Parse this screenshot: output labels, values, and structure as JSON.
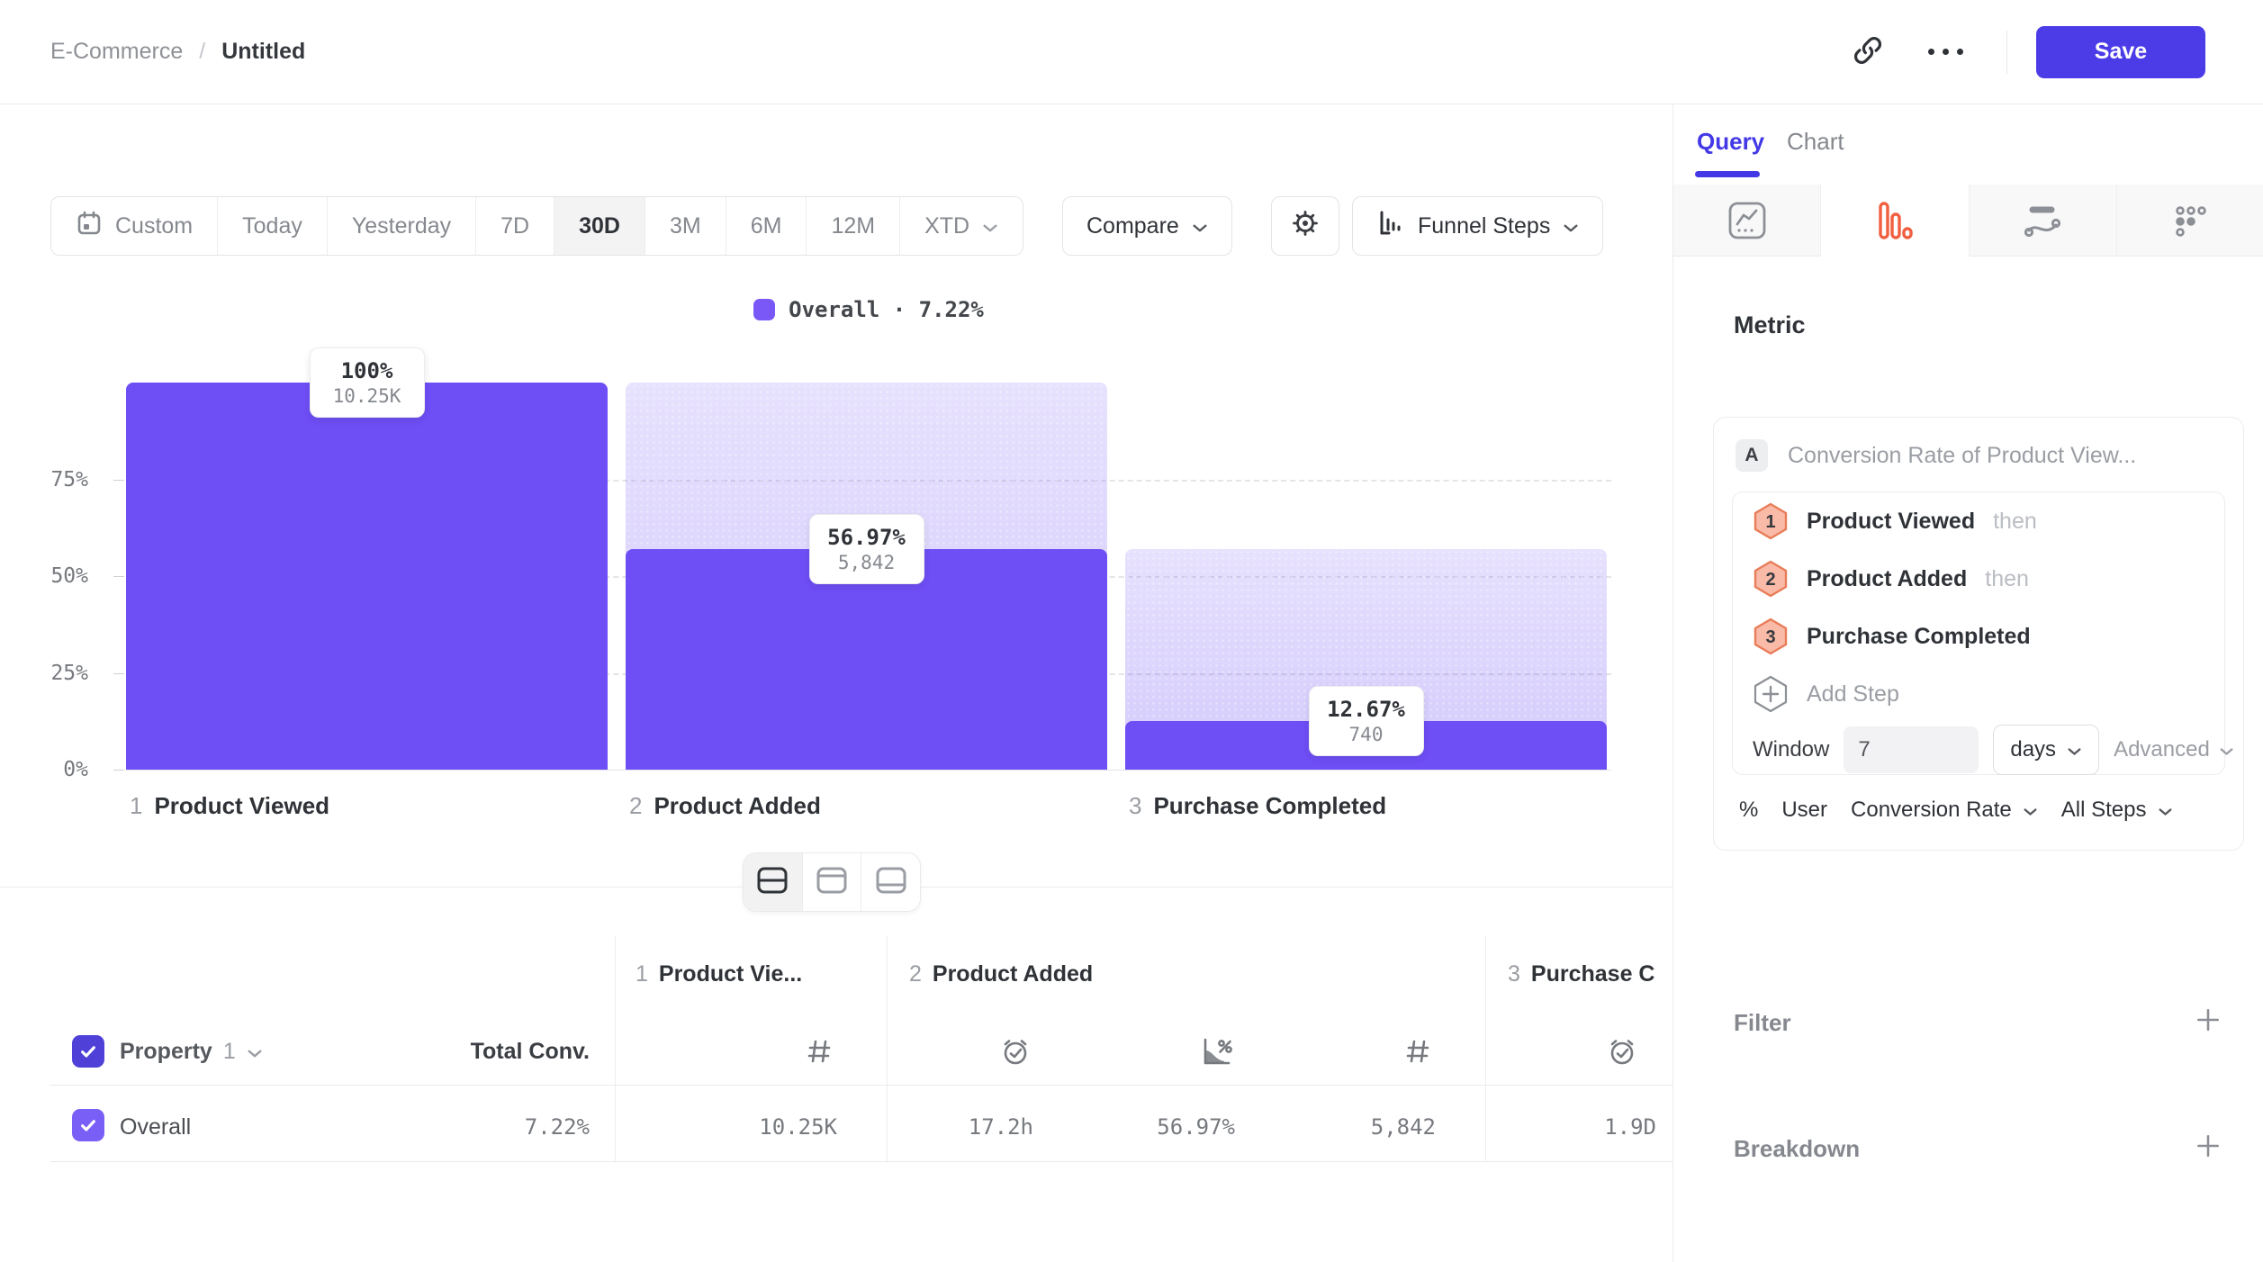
{
  "topbar": {
    "breadcrumb": "E-Commerce",
    "separator": "/",
    "title": "Untitled",
    "save": "Save"
  },
  "toolbar": {
    "ranges": [
      "Custom",
      "Today",
      "Yesterday",
      "7D",
      "30D",
      "3M",
      "6M",
      "12M",
      "XTD"
    ],
    "selected_range": "30D",
    "compare": "Compare",
    "view_type": "Funnel Steps"
  },
  "chart_data": {
    "type": "bar",
    "subtype": "funnel",
    "title": "",
    "legend_label": "Overall · 7.22%",
    "categories": [
      "Product Viewed",
      "Product Added",
      "Purchase Completed"
    ],
    "steps": [
      {
        "index": "1",
        "name": "Product Viewed",
        "pct": 100,
        "prev_pct": 100,
        "pct_label": "100%",
        "count_label": "10.25K"
      },
      {
        "index": "2",
        "name": "Product Added",
        "pct": 56.97,
        "prev_pct": 100,
        "pct_label": "56.97%",
        "count_label": "5,842"
      },
      {
        "index": "3",
        "name": "Purchase Completed",
        "pct": 12.67,
        "prev_pct": 56.97,
        "pct_label": "12.67%",
        "count_label": "740"
      }
    ],
    "y_ticks": [
      "75%",
      "50%",
      "25%",
      "0%"
    ],
    "ylim": [
      0,
      100
    ],
    "grid": "dashed",
    "legend_position": "top-center",
    "bar_color": "#6e4ef5"
  },
  "table": {
    "property_label": "Property",
    "property_index": "1",
    "total_conv_label": "Total Conv.",
    "groups": [
      {
        "index": "1",
        "title": "Product Vie...",
        "icons": [
          "hash"
        ]
      },
      {
        "index": "2",
        "title": "Product Added",
        "icons": [
          "clock-check",
          "chart-percent",
          "hash"
        ]
      },
      {
        "index": "3",
        "title": "Purchase C",
        "icons": [
          "clock-check"
        ]
      }
    ],
    "row": {
      "label": "Overall",
      "total_conv": "7.22%",
      "values": [
        "10.25K",
        "17.2h",
        "56.97%",
        "5,842",
        "1.9D"
      ]
    }
  },
  "panel": {
    "tabs": {
      "query": "Query",
      "chart": "Chart"
    },
    "active_tab": "Query",
    "metric_heading": "Metric",
    "metric_badge": "A",
    "metric_title": "Conversion Rate of Product View...",
    "steps": [
      {
        "num": "1",
        "name": "Product Viewed",
        "suffix": "then"
      },
      {
        "num": "2",
        "name": "Product Added",
        "suffix": "then"
      },
      {
        "num": "3",
        "name": "Purchase Completed",
        "suffix": ""
      }
    ],
    "add_step": "Add Step",
    "window_label": "Window",
    "window_value": "7",
    "window_unit": "days",
    "advanced": "Advanced",
    "measure_pct": "%",
    "measure_user": "User",
    "measure_type": "Conversion Rate",
    "measure_scope": "All Steps",
    "filter_label": "Filter",
    "breakdown_label": "Breakdown"
  },
  "colors": {
    "accent_purple": "#4c3ce8",
    "bar_purple": "#6e4ef5",
    "query_tab": "#4338e6",
    "funnel_icon_orange": "#f15f40",
    "step_badge_fill": "#f9baa8",
    "step_badge_border": "#e97c58"
  }
}
